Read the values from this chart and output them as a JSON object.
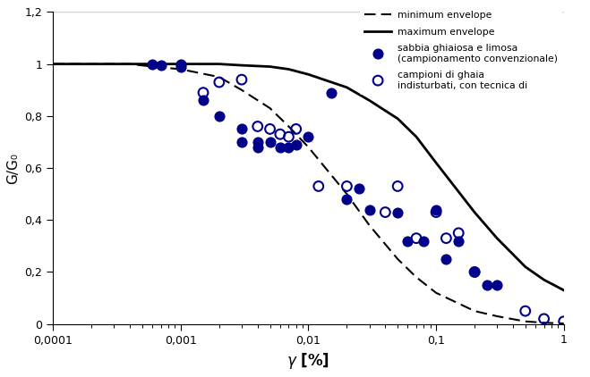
{
  "title": "",
  "ylabel": "G/G",
  "xlim": [
    0.0001,
    1.0
  ],
  "ylim": [
    0.0,
    1.2
  ],
  "yticks": [
    0.0,
    0.2,
    0.4,
    0.6,
    0.8,
    1.0,
    1.2
  ],
  "ytick_labels": [
    "0",
    "0,2",
    "0,4",
    "0,6",
    "0,8",
    "1",
    "1,2"
  ],
  "xtick_labels": [
    "0,0001",
    "0,001",
    "0,01",
    "0,1",
    "1"
  ],
  "max_envelope_x": [
    0.0001,
    0.0002,
    0.0004,
    0.0006,
    0.001,
    0.002,
    0.003,
    0.005,
    0.007,
    0.01,
    0.02,
    0.03,
    0.05,
    0.07,
    0.1,
    0.2,
    0.3,
    0.5,
    0.7,
    1.0
  ],
  "max_envelope_y": [
    1.0,
    1.0,
    1.0,
    1.0,
    1.0,
    1.0,
    0.995,
    0.99,
    0.98,
    0.96,
    0.91,
    0.86,
    0.79,
    0.72,
    0.62,
    0.43,
    0.33,
    0.22,
    0.17,
    0.13
  ],
  "min_envelope_x": [
    0.0001,
    0.0002,
    0.0004,
    0.0006,
    0.001,
    0.002,
    0.003,
    0.005,
    0.007,
    0.01,
    0.02,
    0.03,
    0.05,
    0.07,
    0.1,
    0.2,
    0.3,
    0.5,
    0.7,
    1.0
  ],
  "min_envelope_y": [
    1.0,
    1.0,
    1.0,
    0.99,
    0.98,
    0.95,
    0.9,
    0.83,
    0.76,
    0.68,
    0.5,
    0.38,
    0.25,
    0.18,
    0.12,
    0.05,
    0.03,
    0.01,
    0.005,
    0.002
  ],
  "filled_x": [
    0.0006,
    0.0007,
    0.001,
    0.001,
    0.0015,
    0.002,
    0.003,
    0.003,
    0.004,
    0.004,
    0.005,
    0.006,
    0.007,
    0.008,
    0.01,
    0.015,
    0.02,
    0.025,
    0.03,
    0.05,
    0.06,
    0.08,
    0.1,
    0.12,
    0.15,
    0.2,
    0.25,
    0.3
  ],
  "filled_y": [
    1.0,
    0.995,
    1.0,
    0.99,
    0.86,
    0.8,
    0.75,
    0.7,
    0.7,
    0.68,
    0.7,
    0.68,
    0.68,
    0.69,
    0.72,
    0.89,
    0.48,
    0.52,
    0.44,
    0.43,
    0.32,
    0.32,
    0.44,
    0.25,
    0.32,
    0.2,
    0.15,
    0.15
  ],
  "open_x": [
    0.0015,
    0.002,
    0.003,
    0.004,
    0.005,
    0.006,
    0.007,
    0.008,
    0.012,
    0.02,
    0.04,
    0.05,
    0.07,
    0.1,
    0.12,
    0.15,
    0.2,
    0.5,
    0.7,
    1.0
  ],
  "open_y": [
    0.89,
    0.93,
    0.94,
    0.76,
    0.75,
    0.73,
    0.72,
    0.75,
    0.53,
    0.53,
    0.43,
    0.53,
    0.33,
    0.43,
    0.33,
    0.35,
    0.2,
    0.05,
    0.02,
    0.01
  ],
  "dot_color": "#00008B",
  "open_color": "#00008B",
  "max_line_color": "#000000",
  "min_line_color": "#000000",
  "background_color": "#ffffff",
  "legend_min": "minimum envelope",
  "legend_max": "maximum envelope",
  "legend_filled_1": "sabbia ghiaiosa e limosa",
  "legend_filled_2": "(campionamento convenzionale)",
  "legend_open_1": "campioni di ghaia",
  "legend_open_2": "indisturbati, con tecnica di",
  "top_line_y": 1.2
}
